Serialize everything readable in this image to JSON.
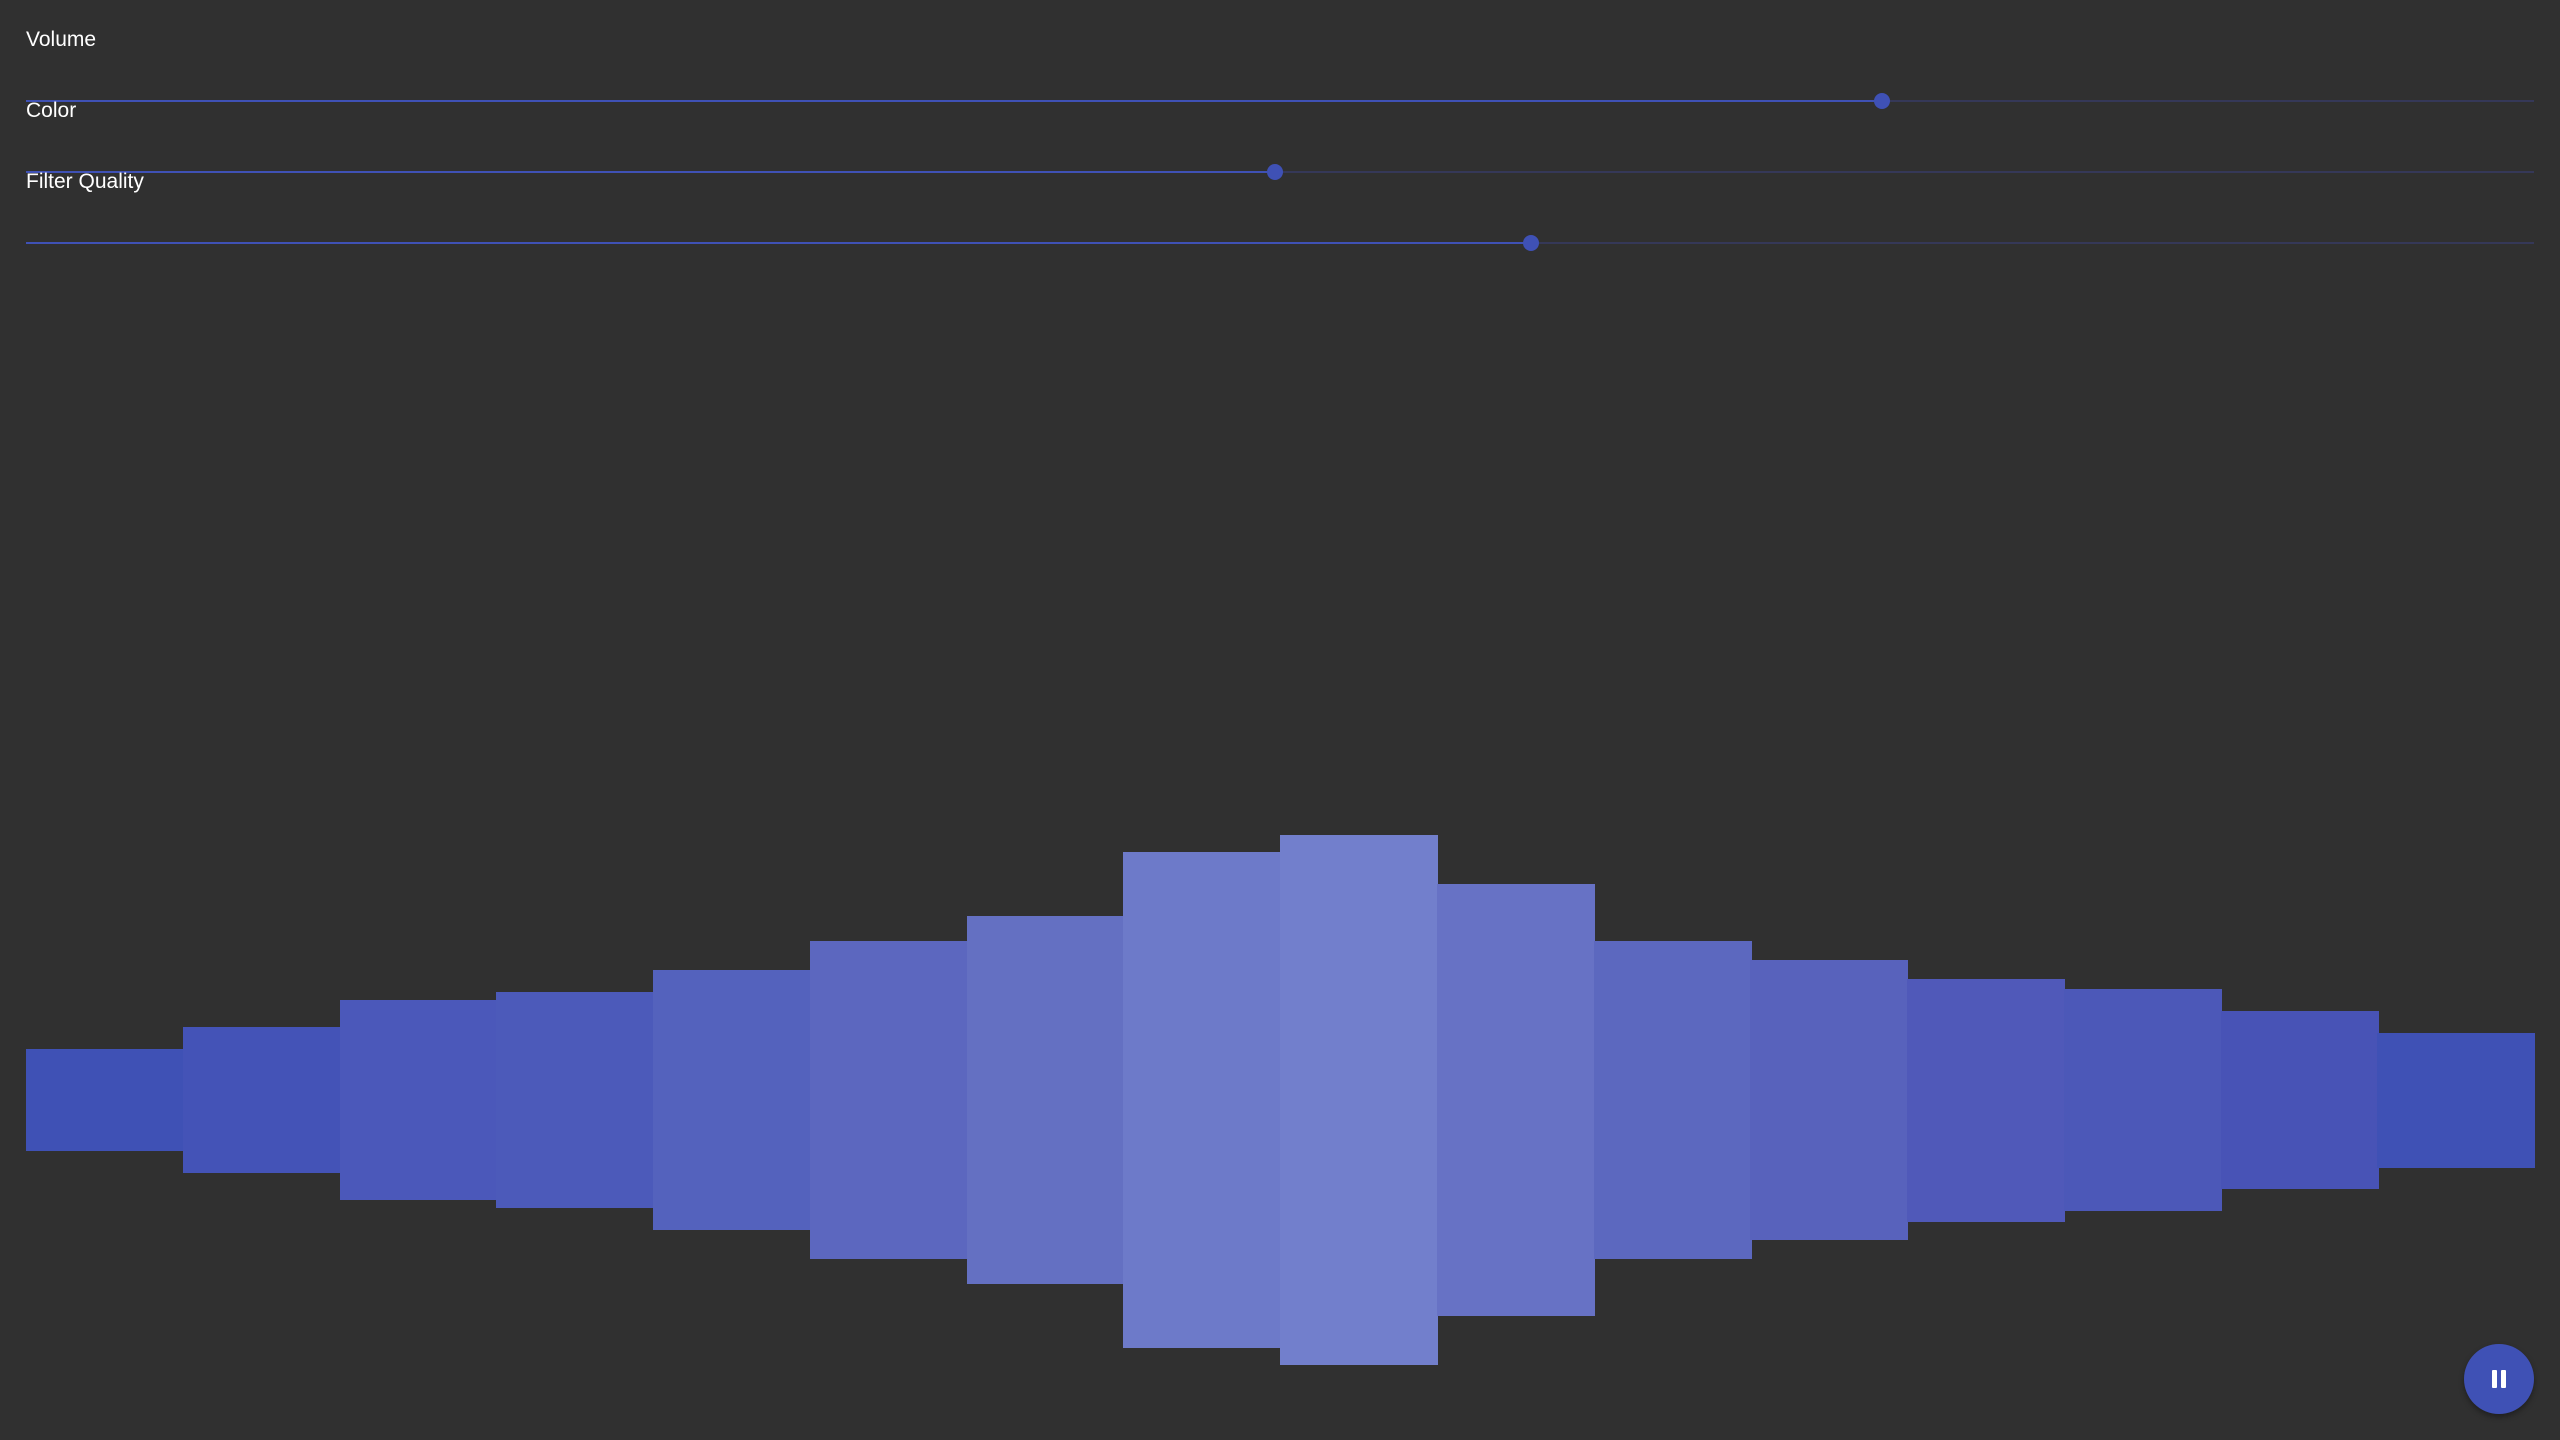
{
  "colors": {
    "background": "#303030",
    "accent": "#3f51b5",
    "text": "#ffffff"
  },
  "sliders": [
    {
      "label": "Volume",
      "value": 0.74
    },
    {
      "label": "Color",
      "value": 0.498
    },
    {
      "label": "Filter Quality",
      "value": 0.6
    }
  ],
  "visualizer": {
    "max_level": 1,
    "levels": [
      0.19,
      0.27,
      0.37,
      0.4,
      0.48,
      0.59,
      0.68,
      0.92,
      0.98,
      0.8,
      0.59,
      0.52,
      0.45,
      0.41,
      0.33,
      0.25
    ],
    "colors": [
      "#3f51b5",
      "#4453b7",
      "#4b58ba",
      "#4c5aba",
      "#5462bd",
      "#5c67bf",
      "#6470c2",
      "#6d7ac9",
      "#727fcc",
      "#6772c5",
      "#5c68bf",
      "#5862bc",
      "#5059b9",
      "#4c58b8",
      "#4853b6",
      "#3f51b5"
    ]
  },
  "controls": {
    "play_pause_icon": "pause-icon",
    "state": "playing"
  }
}
